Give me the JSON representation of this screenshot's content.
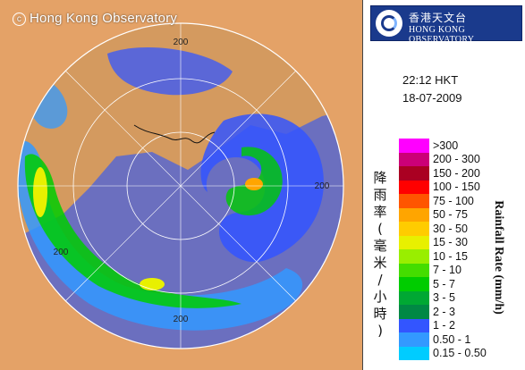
{
  "header": {
    "copyright": "Hong Kong Observatory"
  },
  "logo": {
    "zh": "香港天文台",
    "en": "HONG KONG OBSERVATORY"
  },
  "timestamp": {
    "time": "22:12 HKT",
    "date": "18-07-2009"
  },
  "legend": {
    "title_zh": "降雨率(毫米/小時)",
    "title_en": "Rainfall Rate (mm/h)",
    "levels": [
      {
        "label": ">300",
        "color": "#ff00ff"
      },
      {
        "label": "200 - 300",
        "color": "#cc0077"
      },
      {
        "label": "150 - 200",
        "color": "#aa0022"
      },
      {
        "label": "100 - 150",
        "color": "#ff0000"
      },
      {
        "label": "75 - 100",
        "color": "#ff5500"
      },
      {
        "label": "50 - 75",
        "color": "#ffa500"
      },
      {
        "label": "30 - 50",
        "color": "#ffcc00"
      },
      {
        "label": "15 - 30",
        "color": "#e8f000"
      },
      {
        "label": "10 - 15",
        "color": "#99ee00"
      },
      {
        "label": "7 - 10",
        "color": "#44dd00"
      },
      {
        "label": "5 - 7",
        "color": "#00cc00"
      },
      {
        "label": "3 - 5",
        "color": "#00a833"
      },
      {
        "label": "2 - 3",
        "color": "#008844"
      },
      {
        "label": "1 - 2",
        "color": "#3355ff"
      },
      {
        "label": "0.50 - 1",
        "color": "#3399ff"
      },
      {
        "label": "0.15 - 0.50",
        "color": "#00ccff"
      }
    ]
  },
  "map": {
    "range_labels": [
      "200",
      "200",
      "200",
      "200"
    ],
    "colors": {
      "land": "#e4a267",
      "sea": "#6b6fbf",
      "rings": "#ffffff"
    }
  }
}
